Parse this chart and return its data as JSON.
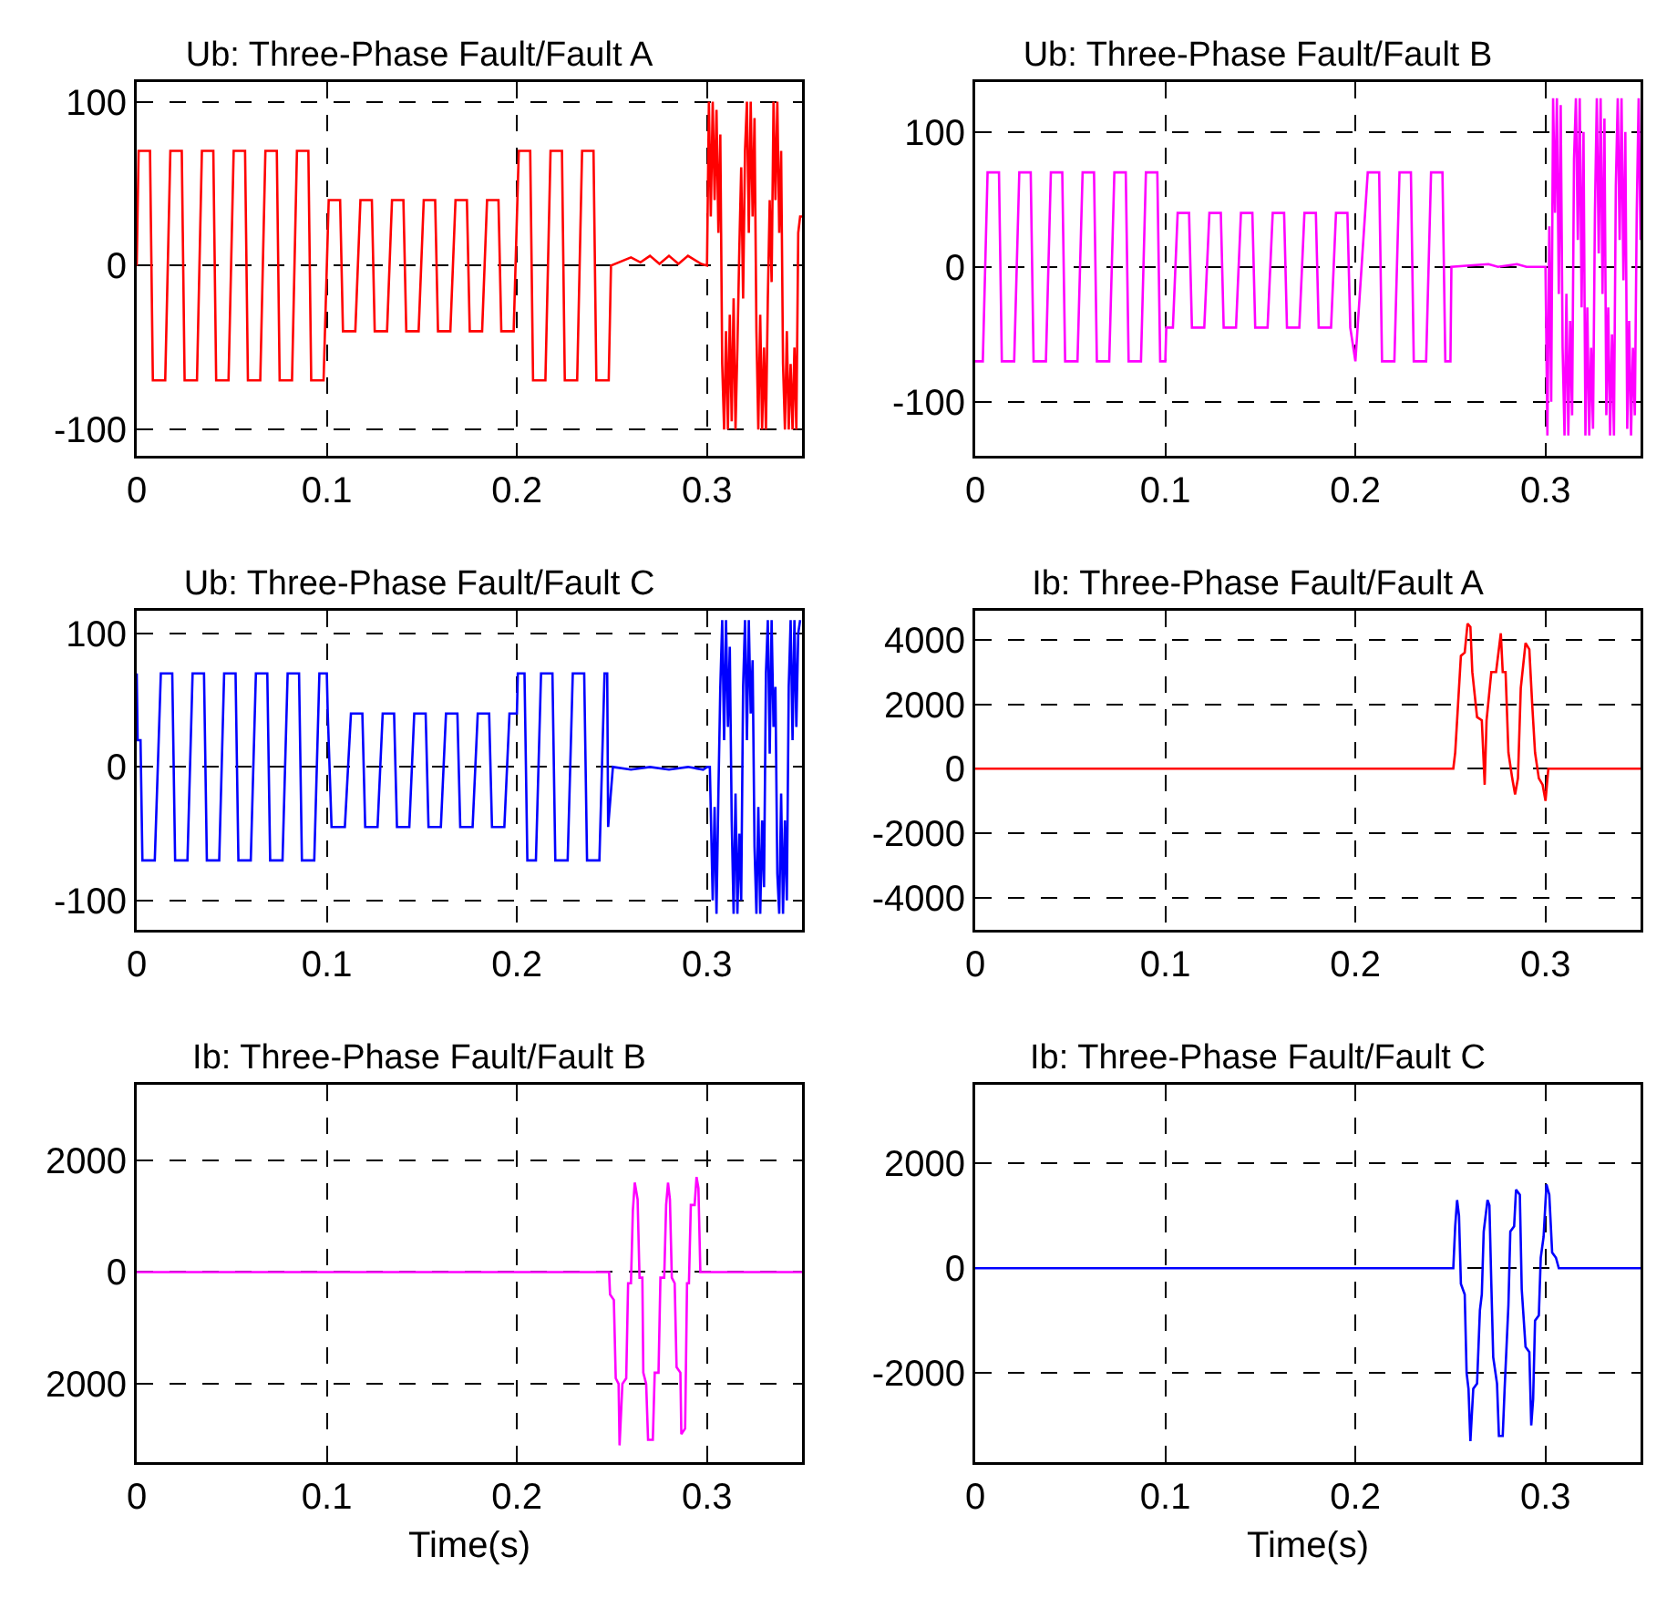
{
  "chart_data": [
    {
      "type": "line",
      "title": "Ub: Three-Phase Fault/Fault A",
      "xlim": [
        0,
        0.35
      ],
      "ylim": [
        -116,
        112
      ],
      "xticks": [
        0,
        0.1,
        0.2,
        0.3
      ],
      "yticks": [
        -100,
        0,
        100
      ],
      "grid": true,
      "x": [
        0,
        0.001,
        0.007,
        0.0085,
        0.015,
        0.0177,
        0.0237,
        0.0252,
        0.0317,
        0.0343,
        0.0403,
        0.0418,
        0.0483,
        0.051,
        0.057,
        0.0585,
        0.065,
        0.0677,
        0.0737,
        0.0752,
        0.0817,
        0.0843,
        0.0903,
        0.0918,
        0.0983,
        0.101,
        0.107,
        0.1085,
        0.115,
        0.1177,
        0.1237,
        0.1252,
        0.1317,
        0.1343,
        0.1403,
        0.1418,
        0.1483,
        0.151,
        0.157,
        0.1585,
        0.165,
        0.1677,
        0.1737,
        0.1752,
        0.1817,
        0.1843,
        0.1903,
        0.1918,
        0.1983,
        0.201,
        0.207,
        0.2085,
        0.215,
        0.2177,
        0.2237,
        0.2252,
        0.2317,
        0.2343,
        0.2403,
        0.2418,
        0.2483,
        0.2495,
        0.26,
        0.265,
        0.27,
        0.275,
        0.28,
        0.285,
        0.29,
        0.297,
        0.3,
        0.301,
        0.302,
        0.303,
        0.304,
        0.305,
        0.306,
        0.307,
        0.308,
        0.309,
        0.31,
        0.311,
        0.312,
        0.313,
        0.314,
        0.315,
        0.316,
        0.317,
        0.318,
        0.319,
        0.32,
        0.321,
        0.322,
        0.323,
        0.324,
        0.325,
        0.326,
        0.327,
        0.328,
        0.329,
        0.33,
        0.331,
        0.332,
        0.333,
        0.334,
        0.335,
        0.336,
        0.337,
        0.338,
        0.339,
        0.34,
        0.341,
        0.342,
        0.343,
        0.344,
        0.345,
        0.346,
        0.347,
        0.348,
        0.349,
        0.35
      ],
      "series": [
        {
          "color": "#ff0000",
          "values": [
            0,
            70,
            70,
            -70,
            -70,
            70,
            70,
            -70,
            -70,
            70,
            70,
            -70,
            -70,
            70,
            70,
            -70,
            -70,
            70,
            70,
            -70,
            -70,
            70,
            70,
            -70,
            -70,
            40,
            40,
            -40,
            -40,
            40,
            40,
            -40,
            -40,
            40,
            40,
            -40,
            -40,
            40,
            40,
            -40,
            -40,
            40,
            40,
            -40,
            -40,
            40,
            40,
            -40,
            -40,
            70,
            70,
            -70,
            -70,
            70,
            70,
            -70,
            -70,
            70,
            70,
            -70,
            -70,
            0,
            5,
            2,
            6,
            1,
            6,
            1,
            6,
            1,
            0,
            100,
            30,
            100,
            40,
            95,
            20,
            80,
            -60,
            -100,
            -40,
            -100,
            -30,
            -95,
            -20,
            -100,
            -50,
            10,
            60,
            -20,
            70,
            100,
            20,
            100,
            30,
            90,
            -40,
            -100,
            -30,
            -100,
            -50,
            -100,
            -20,
            40,
            -10,
            100,
            40,
            100,
            20,
            70,
            -60,
            -100,
            -40,
            -100,
            -60,
            -100,
            -50,
            -100,
            20,
            30,
            30
          ]
        }
      ]
    },
    {
      "type": "line",
      "title": "Ub: Three-Phase Fault/Fault B",
      "xlim": [
        0,
        0.35
      ],
      "ylim": [
        -140,
        137
      ],
      "xticks": [
        0,
        0.1,
        0.2,
        0.3
      ],
      "yticks": [
        -100,
        0,
        100
      ],
      "grid": true,
      "x": [
        0,
        0.004,
        0.0065,
        0.0125,
        0.014,
        0.0205,
        0.0232,
        0.0292,
        0.0307,
        0.0372,
        0.0398,
        0.0458,
        0.0473,
        0.0538,
        0.0565,
        0.0625,
        0.064,
        0.0705,
        0.0732,
        0.0792,
        0.0807,
        0.0872,
        0.0898,
        0.0958,
        0.0973,
        0.1,
        0.1005,
        0.104,
        0.1065,
        0.1125,
        0.114,
        0.1205,
        0.1232,
        0.1292,
        0.1307,
        0.1372,
        0.1398,
        0.1458,
        0.1473,
        0.1538,
        0.1565,
        0.1625,
        0.164,
        0.1705,
        0.1732,
        0.1792,
        0.1807,
        0.1872,
        0.1898,
        0.1958,
        0.1973,
        0.2,
        0.2065,
        0.2125,
        0.214,
        0.2205,
        0.2232,
        0.2292,
        0.2307,
        0.2372,
        0.2398,
        0.2458,
        0.2473,
        0.25,
        0.2505,
        0.27,
        0.275,
        0.285,
        0.29,
        0.3,
        0.301,
        0.302,
        0.303,
        0.304,
        0.305,
        0.306,
        0.307,
        0.308,
        0.309,
        0.31,
        0.311,
        0.312,
        0.313,
        0.314,
        0.315,
        0.316,
        0.317,
        0.318,
        0.319,
        0.32,
        0.321,
        0.322,
        0.323,
        0.324,
        0.325,
        0.326,
        0.327,
        0.328,
        0.329,
        0.33,
        0.331,
        0.332,
        0.333,
        0.334,
        0.335,
        0.336,
        0.337,
        0.338,
        0.339,
        0.34,
        0.341,
        0.342,
        0.343,
        0.344,
        0.345,
        0.346,
        0.347,
        0.348,
        0.349,
        0.35
      ],
      "series": [
        {
          "color": "#ff00ff",
          "values": [
            -70,
            -70,
            70,
            70,
            -70,
            -70,
            70,
            70,
            -70,
            -70,
            70,
            70,
            -70,
            -70,
            70,
            70,
            -70,
            -70,
            70,
            70,
            -70,
            -70,
            70,
            70,
            -70,
            -70,
            -45,
            -45,
            40,
            40,
            -45,
            -45,
            40,
            40,
            -45,
            -45,
            40,
            40,
            -45,
            -45,
            40,
            40,
            -45,
            -45,
            40,
            40,
            -45,
            -45,
            40,
            40,
            -45,
            -70,
            70,
            70,
            -70,
            -70,
            70,
            70,
            -70,
            -70,
            70,
            70,
            -70,
            -70,
            0,
            2,
            0,
            2,
            0,
            0,
            -125,
            30,
            -100,
            125,
            40,
            125,
            -20,
            120,
            -60,
            -125,
            -20,
            -125,
            -40,
            -110,
            80,
            125,
            20,
            125,
            -30,
            100,
            -125,
            -30,
            -125,
            -60,
            -120,
            40,
            125,
            10,
            125,
            -20,
            110,
            -110,
            -30,
            -125,
            -50,
            -125,
            60,
            125,
            20,
            125,
            -10,
            100,
            -120,
            -40,
            -125,
            -60,
            -110,
            40,
            125,
            20
          ]
        }
      ]
    },
    {
      "type": "line",
      "title": "Ub: Three-Phase Fault/Fault C",
      "xlim": [
        0,
        0.35
      ],
      "ylim": [
        -122,
        117
      ],
      "xticks": [
        0,
        0.1,
        0.2,
        0.3
      ],
      "yticks": [
        -100,
        0,
        100
      ],
      "grid": true,
      "x": [
        0,
        0.0005,
        0.002,
        0.003,
        0.0095,
        0.0127,
        0.0187,
        0.0202,
        0.0267,
        0.0294,
        0.0354,
        0.0369,
        0.0434,
        0.046,
        0.052,
        0.0535,
        0.06,
        0.0627,
        0.0687,
        0.0702,
        0.0767,
        0.0794,
        0.0854,
        0.0869,
        0.0934,
        0.0961,
        0.1,
        0.1005,
        0.1025,
        0.1095,
        0.1127,
        0.1187,
        0.1202,
        0.1267,
        0.1294,
        0.1354,
        0.1369,
        0.1434,
        0.146,
        0.152,
        0.1535,
        0.16,
        0.1627,
        0.1687,
        0.1702,
        0.1767,
        0.1794,
        0.1854,
        0.1869,
        0.1934,
        0.1961,
        0.2,
        0.2005,
        0.204,
        0.2055,
        0.21,
        0.2127,
        0.2187,
        0.2202,
        0.2267,
        0.2294,
        0.2354,
        0.2369,
        0.2434,
        0.2461,
        0.2475,
        0.248,
        0.2505,
        0.26,
        0.27,
        0.28,
        0.29,
        0.298,
        0.3,
        0.3015,
        0.303,
        0.304,
        0.305,
        0.306,
        0.307,
        0.308,
        0.309,
        0.31,
        0.311,
        0.312,
        0.313,
        0.314,
        0.315,
        0.316,
        0.317,
        0.318,
        0.319,
        0.32,
        0.321,
        0.322,
        0.323,
        0.324,
        0.325,
        0.326,
        0.327,
        0.328,
        0.329,
        0.33,
        0.331,
        0.332,
        0.333,
        0.334,
        0.335,
        0.336,
        0.337,
        0.338,
        0.339,
        0.34,
        0.341,
        0.342,
        0.343,
        0.344,
        0.345,
        0.346,
        0.347,
        0.348,
        0.349
      ],
      "series": [
        {
          "color": "#0000ff",
          "values": [
            70,
            20,
            20,
            -70,
            -70,
            70,
            70,
            -70,
            -70,
            70,
            70,
            -70,
            -70,
            70,
            70,
            -70,
            -70,
            70,
            70,
            -70,
            -70,
            70,
            70,
            -70,
            -70,
            70,
            70,
            40,
            -45,
            -45,
            40,
            40,
            -45,
            -45,
            40,
            40,
            -45,
            -45,
            40,
            40,
            -45,
            -45,
            40,
            40,
            -45,
            -45,
            40,
            40,
            -45,
            -45,
            40,
            40,
            70,
            70,
            -70,
            -70,
            70,
            70,
            -70,
            -70,
            70,
            70,
            -70,
            -70,
            70,
            70,
            -45,
            0,
            -2,
            0,
            -2,
            0,
            -2,
            0,
            0,
            -100,
            -30,
            -110,
            -20,
            60,
            110,
            20,
            110,
            30,
            90,
            -40,
            -110,
            -20,
            -110,
            -50,
            -100,
            60,
            110,
            20,
            110,
            40,
            80,
            -60,
            -110,
            -30,
            -110,
            -40,
            -90,
            70,
            110,
            10,
            110,
            30,
            60,
            -80,
            -110,
            -20,
            -110,
            -40,
            -100,
            60,
            110,
            20,
            110,
            30,
            100,
            110
          ]
        }
      ]
    },
    {
      "type": "line",
      "title": "Ib: Three-Phase Fault/Fault A",
      "xlim": [
        0,
        0.35
      ],
      "ylim": [
        -5000,
        4900
      ],
      "xticks": [
        0,
        0.1,
        0.2,
        0.3
      ],
      "yticks": [
        -4000,
        -2000,
        0,
        2000,
        4000
      ],
      "grid": true,
      "x": [
        0,
        0.2515,
        0.2525,
        0.254,
        0.2555,
        0.2575,
        0.259,
        0.2605,
        0.2615,
        0.264,
        0.2665,
        0.268,
        0.269,
        0.2715,
        0.274,
        0.2765,
        0.2775,
        0.279,
        0.2805,
        0.2825,
        0.284,
        0.2855,
        0.287,
        0.2895,
        0.2915,
        0.293,
        0.2945,
        0.2965,
        0.2985,
        0.3,
        0.3015,
        0.35
      ],
      "series": [
        {
          "color": "#ff0000",
          "values": [
            0,
            0,
            500,
            2000,
            3500,
            3600,
            4500,
            4400,
            3000,
            1600,
            1500,
            -500,
            1500,
            3000,
            3000,
            4200,
            3000,
            3000,
            500,
            -300,
            -800,
            -300,
            2500,
            3900,
            3700,
            2000,
            500,
            -300,
            -500,
            -1000,
            0,
            0
          ]
        }
      ]
    },
    {
      "type": "line",
      "title": "Ib: Three-Phase Fault/Fault B",
      "xlabel": "Time(s)",
      "xlim": [
        0,
        0.35
      ],
      "ylim": [
        -3400,
        3350
      ],
      "xticks": [
        0,
        0.1,
        0.2,
        0.3
      ],
      "yticks": [
        {
          "value": -2000,
          "label": "2000"
        },
        0,
        2000
      ],
      "grid": true,
      "x": [
        0,
        0.2485,
        0.249,
        0.251,
        0.252,
        0.2535,
        0.254,
        0.2555,
        0.2575,
        0.2585,
        0.26,
        0.261,
        0.262,
        0.2635,
        0.2645,
        0.266,
        0.2665,
        0.268,
        0.269,
        0.2715,
        0.2725,
        0.2745,
        0.2755,
        0.2775,
        0.2785,
        0.2795,
        0.2805,
        0.2815,
        0.283,
        0.284,
        0.286,
        0.2865,
        0.2885,
        0.2895,
        0.2905,
        0.2915,
        0.2935,
        0.2945,
        0.2955,
        0.2965,
        0.35
      ],
      "series": [
        {
          "color": "#ff00ff",
          "values": [
            0,
            0,
            -400,
            -500,
            -1900,
            -2000,
            -3100,
            -2000,
            -1900,
            -200,
            -200,
            1100,
            1600,
            1300,
            -100,
            -100,
            -1800,
            -2000,
            -3000,
            -3000,
            -1800,
            -1800,
            -100,
            -100,
            1200,
            1600,
            1300,
            -100,
            -200,
            -1700,
            -1800,
            -2900,
            -2800,
            -200,
            -200,
            1200,
            1200,
            1700,
            1500,
            0,
            0
          ]
        }
      ]
    },
    {
      "type": "line",
      "title": "Ib: Three-Phase Fault/Fault C",
      "xlabel": "Time(s)",
      "xlim": [
        0,
        0.35
      ],
      "ylim": [
        -3700,
        3500
      ],
      "xticks": [
        0,
        0.1,
        0.2,
        0.3
      ],
      "yticks": [
        -2000,
        0,
        2000
      ],
      "grid": true,
      "x": [
        0,
        0.2515,
        0.2525,
        0.2535,
        0.2545,
        0.2555,
        0.2575,
        0.2585,
        0.2595,
        0.2605,
        0.262,
        0.264,
        0.2655,
        0.2665,
        0.2675,
        0.2695,
        0.2705,
        0.2715,
        0.2725,
        0.2745,
        0.2755,
        0.2775,
        0.2785,
        0.2805,
        0.2815,
        0.2835,
        0.2845,
        0.2865,
        0.2875,
        0.2895,
        0.2915,
        0.2925,
        0.2935,
        0.2945,
        0.2965,
        0.2975,
        0.299,
        0.3005,
        0.302,
        0.3035,
        0.3055,
        0.307,
        0.35
      ],
      "series": [
        {
          "color": "#0000ff",
          "values": [
            0,
            0,
            800,
            1300,
            1000,
            -300,
            -500,
            -2000,
            -2300,
            -3300,
            -2300,
            -2200,
            -800,
            -500,
            700,
            1300,
            1200,
            -300,
            -1700,
            -2200,
            -3200,
            -3200,
            -2300,
            -700,
            700,
            800,
            1500,
            1400,
            -400,
            -1500,
            -1600,
            -3000,
            -2500,
            -1000,
            -900,
            200,
            600,
            1600,
            1400,
            300,
            200,
            0,
            0
          ]
        }
      ]
    }
  ]
}
